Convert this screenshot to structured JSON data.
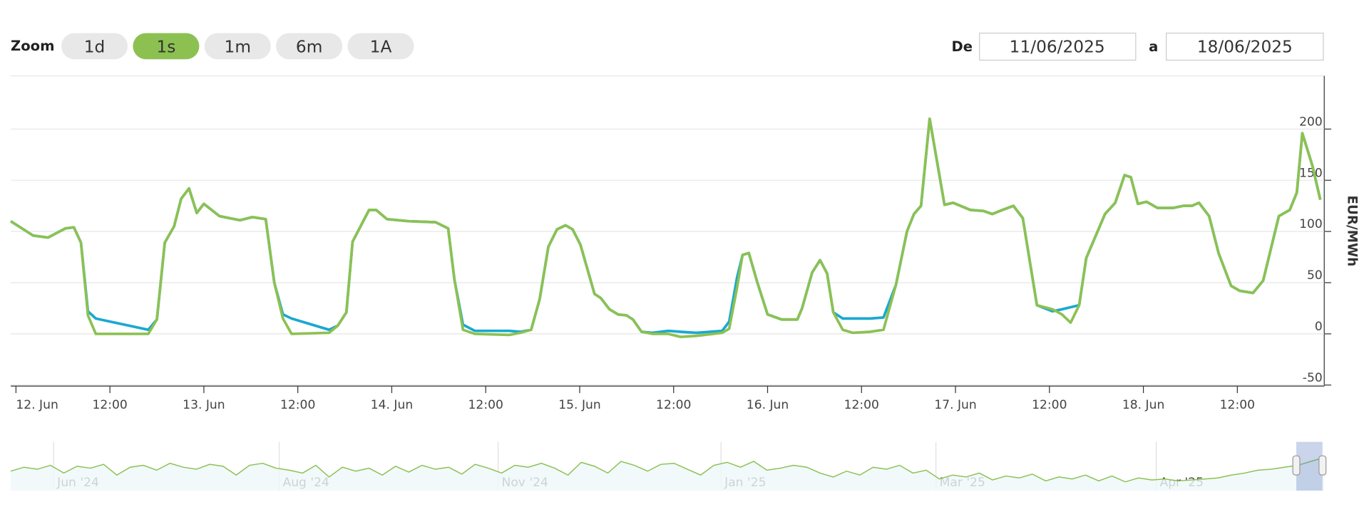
{
  "range_selector": {
    "zoom_label": "Zoom",
    "buttons": [
      "1d",
      "1s",
      "1m",
      "6m",
      "1A"
    ],
    "selected": 1,
    "from_label": "De",
    "from": "11/06/2025",
    "to_label": "a",
    "to": "18/06/2025"
  },
  "chart_data": {
    "type": "line",
    "y_label": "EUR/MWh",
    "grid": true,
    "x": [
      -0.67,
      2.2,
      4.1,
      6.3,
      7.4,
      8.3,
      9.2,
      10.2,
      16.9,
      18,
      19,
      20.2,
      21.1,
      22.1,
      23.1,
      24,
      26,
      28.6,
      30.2,
      31.9,
      33,
      34.1,
      35.2,
      40,
      41.1,
      42.2,
      43,
      45.1,
      46,
      47.4,
      50.2,
      53.6,
      55.2,
      56,
      57.1,
      58.6,
      63,
      64.4,
      65.8,
      66.9,
      68,
      69.1,
      70.2,
      71.1,
      72.1,
      73.9,
      74.7,
      75.8,
      76.9,
      78,
      78.8,
      79.9,
      81.3,
      83.3,
      84.9,
      86.9,
      90.2,
      91.1,
      92.1,
      92.8,
      93.6,
      94.7,
      96,
      97.8,
      99.8,
      100.4,
      101.7,
      102.7,
      103.6,
      104.4,
      105.6,
      106.9,
      109.1,
      110.8,
      112.4,
      113.8,
      114.7,
      115.6,
      116.7,
      118.6,
      119.7,
      121.9,
      123.6,
      124.7,
      126,
      127.4,
      128.6,
      130.4,
      132.4,
      133.6,
      134.7,
      135.8,
      136.7,
      139.1,
      140.4,
      141.6,
      142.4,
      143.3,
      144.4,
      145.8,
      147.8,
      149.1,
      150.2,
      151.1,
      152.4,
      153.6,
      155.2,
      156.3,
      158,
      159.3,
      161.3,
      162.7,
      163.6,
      164.3,
      165.6,
      166.6
    ],
    "series": [
      {
        "color": "#1aa8d1",
        "values": [
          110,
          96,
          94,
          103,
          104,
          89,
          22,
          15,
          4,
          14,
          89,
          105,
          132,
          142,
          118,
          127,
          115,
          111,
          114,
          112,
          50,
          19,
          15,
          4,
          8,
          21,
          90,
          121,
          121,
          112,
          110,
          109,
          103,
          53,
          9,
          3,
          3,
          2,
          4,
          34,
          85,
          102,
          106,
          102,
          87,
          39,
          35,
          24,
          19,
          18,
          14,
          2,
          1,
          3,
          2,
          1,
          3,
          12,
          55,
          77,
          79,
          50,
          19,
          14,
          14,
          25,
          60,
          72,
          59,
          21,
          15,
          15,
          15,
          16,
          48,
          100,
          117,
          125,
          210,
          126,
          128,
          121,
          120,
          117,
          121,
          125,
          113,
          28,
          22,
          24,
          26,
          28,
          74,
          117,
          128,
          155,
          153,
          127,
          129,
          123,
          123,
          125,
          125,
          128,
          115,
          79,
          47,
          42,
          40,
          52,
          115,
          121,
          138,
          196,
          164,
          131
        ]
      },
      {
        "color": "#8cc152",
        "values": [
          110,
          96,
          94,
          103,
          104,
          89,
          18,
          0,
          0,
          14,
          89,
          105,
          132,
          142,
          118,
          127,
          115,
          111,
          114,
          112,
          50,
          15,
          0,
          1,
          8,
          21,
          90,
          121,
          121,
          112,
          110,
          109,
          103,
          53,
          4,
          0,
          -1,
          1,
          4,
          34,
          85,
          102,
          106,
          102,
          87,
          39,
          35,
          24,
          19,
          18,
          14,
          2,
          0,
          0,
          -3,
          -2,
          1,
          5,
          45,
          77,
          79,
          50,
          19,
          14,
          14,
          25,
          60,
          72,
          59,
          21,
          4,
          1,
          2,
          4,
          48,
          100,
          117,
          125,
          210,
          126,
          128,
          121,
          120,
          117,
          121,
          125,
          113,
          28,
          24,
          19,
          11,
          28,
          74,
          117,
          128,
          155,
          153,
          127,
          129,
          123,
          123,
          125,
          125,
          128,
          115,
          79,
          47,
          42,
          40,
          52,
          115,
          121,
          138,
          196,
          164,
          131
        ]
      }
    ],
    "xlim": [
      -0.67,
      167.1
    ],
    "xticks": [
      {
        "value": 0,
        "label": "12. Jun"
      },
      {
        "value": 12,
        "label": "12:00"
      },
      {
        "value": 24,
        "label": "13. Jun"
      },
      {
        "value": 36,
        "label": "12:00"
      },
      {
        "value": 48,
        "label": "14. Jun"
      },
      {
        "value": 60,
        "label": "12:00"
      },
      {
        "value": 72,
        "label": "15. Jun"
      },
      {
        "value": 84,
        "label": "12:00"
      },
      {
        "value": 96,
        "label": "16. Jun"
      },
      {
        "value": 108,
        "label": "12:00"
      },
      {
        "value": 120,
        "label": "17. Jun"
      },
      {
        "value": 132,
        "label": "12:00"
      },
      {
        "value": 144,
        "label": "18. Jun"
      },
      {
        "value": 156,
        "label": "12:00"
      }
    ],
    "ylim": [
      -51,
      252
    ],
    "yticks": [
      -50,
      0,
      50,
      100,
      150,
      200
    ],
    "navigator": {
      "color": "#8cc152",
      "ylim": [
        -20,
        230
      ],
      "values": [
        80,
        100,
        90,
        110,
        70,
        105,
        95,
        115,
        60,
        100,
        110,
        85,
        120,
        100,
        90,
        115,
        105,
        60,
        110,
        120,
        95,
        85,
        70,
        110,
        50,
        100,
        80,
        95,
        60,
        105,
        75,
        110,
        90,
        100,
        65,
        115,
        95,
        70,
        110,
        100,
        120,
        95,
        60,
        125,
        105,
        70,
        130,
        110,
        80,
        115,
        120,
        90,
        60,
        110,
        125,
        100,
        130,
        85,
        95,
        110,
        100,
        70,
        50,
        80,
        60,
        100,
        90,
        110,
        70,
        85,
        40,
        60,
        50,
        70,
        35,
        55,
        45,
        65,
        30,
        50,
        40,
        60,
        30,
        55,
        25,
        45,
        35,
        40,
        30,
        35,
        40,
        45,
        60,
        70,
        85,
        90,
        100,
        110,
        130,
        150
      ],
      "xticks": [
        {
          "value": 3.5,
          "label": "Jun '24"
        },
        {
          "value": 20.5,
          "label": "Aug '24"
        },
        {
          "value": 37,
          "label": "Nov '24"
        },
        {
          "value": 53.8,
          "label": "Jan '25"
        },
        {
          "value": 70,
          "label": "Mar '25"
        },
        {
          "value": 86.6,
          "label": "Apr '25"
        }
      ]
    }
  }
}
